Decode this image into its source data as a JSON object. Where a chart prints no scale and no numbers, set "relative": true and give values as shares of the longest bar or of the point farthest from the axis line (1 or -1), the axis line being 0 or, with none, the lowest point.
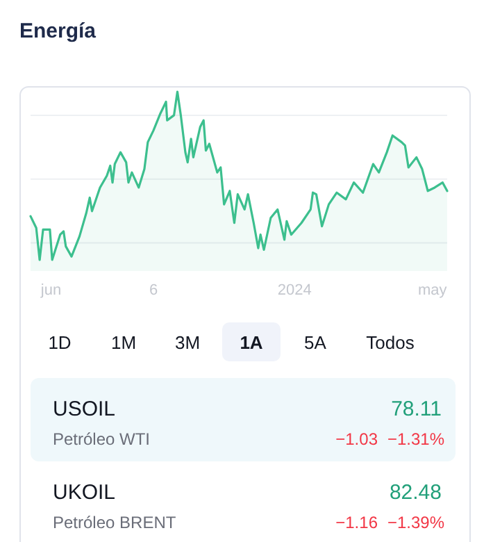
{
  "chart_data": [
    {
      "type": "area",
      "title": "Energía",
      "relative": true,
      "color": "#3cbf8e",
      "grid": "y",
      "xlim": [
        "2023-05-14",
        "2024-05-14"
      ],
      "xticks": [
        {
          "value": "2023-06-01",
          "label": "jun"
        },
        {
          "value": "2023-08-30",
          "label": "6"
        },
        {
          "value": "2024-01-01",
          "label": "2024"
        },
        {
          "value": "2024-05-01",
          "label": "may"
        }
      ],
      "x": [
        "2023-05-14",
        "2023-05-19",
        "2023-05-22",
        "2023-05-25",
        "2023-05-31",
        "2023-06-02",
        "2023-06-09",
        "2023-06-12",
        "2023-06-14",
        "2023-06-19",
        "2023-06-26",
        "2023-07-02",
        "2023-07-05",
        "2023-07-07",
        "2023-07-14",
        "2023-07-20",
        "2023-07-23",
        "2023-07-25",
        "2023-07-27",
        "2023-08-01",
        "2023-08-06",
        "2023-08-08",
        "2023-08-11",
        "2023-08-17",
        "2023-08-22",
        "2023-08-25",
        "2023-08-30",
        "2023-09-05",
        "2023-09-10",
        "2023-09-11",
        "2023-09-17",
        "2023-09-20",
        "2023-09-23",
        "2023-09-27",
        "2023-09-29",
        "2023-10-02",
        "2023-10-04",
        "2023-10-10",
        "2023-10-13",
        "2023-10-15",
        "2023-10-18",
        "2023-10-25",
        "2023-10-28",
        "2023-10-31",
        "2023-11-05",
        "2023-11-09",
        "2023-11-12",
        "2023-11-18",
        "2023-11-21",
        "2023-11-26",
        "2023-11-30",
        "2023-12-02",
        "2023-12-05",
        "2023-12-11",
        "2023-12-17",
        "2023-12-23",
        "2023-12-25",
        "2023-12-29",
        "2024-01-07",
        "2024-01-15",
        "2024-01-17",
        "2024-01-20",
        "2024-01-25",
        "2024-01-31",
        "2024-02-07",
        "2024-02-15",
        "2024-02-22",
        "2024-03-01",
        "2024-03-10",
        "2024-03-15",
        "2024-03-22",
        "2024-03-27",
        "2024-04-04",
        "2024-04-07",
        "2024-04-10",
        "2024-04-17",
        "2024-04-22",
        "2024-04-27",
        "2024-05-03",
        "2024-05-10",
        "2024-05-14"
      ],
      "values": [
        0.26,
        0.19,
        0,
        0.18,
        0.18,
        0,
        0.15,
        0.17,
        0.08,
        0.02,
        0.14,
        0.28,
        0.37,
        0.29,
        0.43,
        0.5,
        0.56,
        0.46,
        0.57,
        0.64,
        0.58,
        0.46,
        0.52,
        0.43,
        0.54,
        0.7,
        0.77,
        0.87,
        0.94,
        0.83,
        0.86,
        1,
        0.86,
        0.64,
        0.58,
        0.72,
        0.61,
        0.79,
        0.83,
        0.65,
        0.69,
        0.52,
        0.55,
        0.33,
        0.41,
        0.22,
        0.39,
        0.3,
        0.39,
        0.22,
        0.07,
        0.15,
        0.06,
        0.25,
        0.3,
        0.12,
        0.23,
        0.15,
        0.22,
        0.3,
        0.4,
        0.39,
        0.2,
        0.33,
        0.4,
        0.36,
        0.46,
        0.4,
        0.57,
        0.52,
        0.64,
        0.74,
        0.7,
        0.68,
        0.55,
        0.61,
        0.54,
        0.41,
        0.43,
        0.46,
        0.41
      ]
    },
    {
      "type": "other",
      "annotations": [
        "1D",
        "1M",
        "3M",
        "1A",
        "5A",
        "Todos",
        "USOIL",
        "78.11",
        "Petróleo WTI",
        "−1.03",
        "−1.31%",
        "UKOIL",
        "82.48",
        "Petróleo BRENT",
        "−1.16",
        "−1.39%"
      ]
    }
  ]
}
